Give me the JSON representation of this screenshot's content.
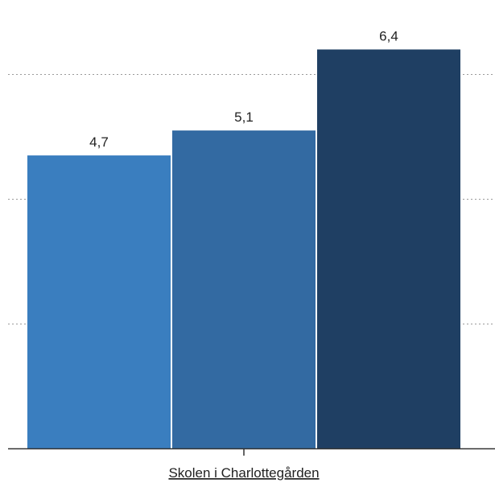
{
  "chart_data": {
    "type": "bar",
    "categories": [
      "Skolen i Charlottegården"
    ],
    "series": [
      {
        "values": [
          4.7
        ],
        "value_label": "4,7",
        "color": "#3a7ebf"
      },
      {
        "values": [
          5.1
        ],
        "value_label": "5,1",
        "color": "#336aa2"
      },
      {
        "values": [
          6.4
        ],
        "value_label": "6,4",
        "color": "#1f3f63"
      }
    ],
    "title": "",
    "xlabel": "",
    "ylabel": "",
    "ylim": [
      0,
      7.0
    ],
    "y_gridlines": [
      2.0,
      4.0,
      6.0
    ],
    "grid": "horizontal-dotted",
    "legend": "none"
  }
}
